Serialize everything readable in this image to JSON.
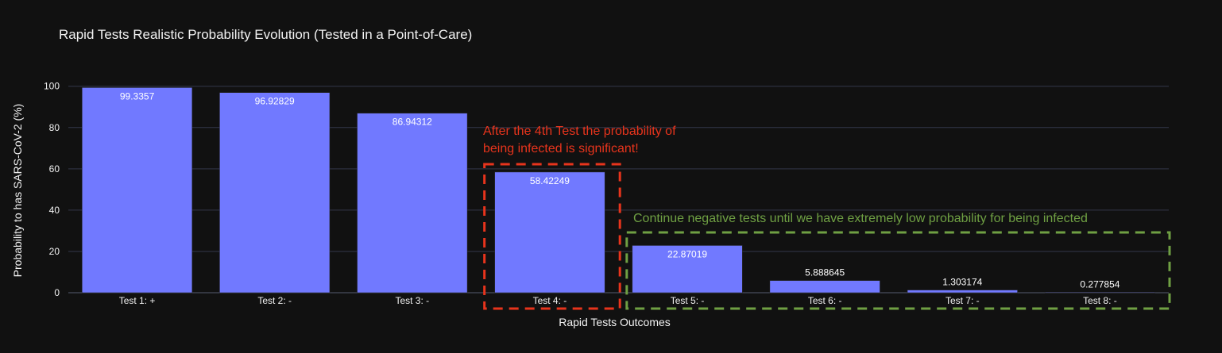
{
  "chart_data": {
    "type": "bar",
    "title": "Rapid Tests Realistic Probability Evolution (Tested in a Point-of-Care)",
    "xlabel": "Rapid Tests Outcomes",
    "ylabel": "Probability to has SARS-CoV-2 (%)",
    "categories": [
      "Test 1: +",
      "Test 2: -",
      "Test 3: -",
      "Test 4: -",
      "Test 5: -",
      "Test 6: -",
      "Test 7: -",
      "Test 8: -"
    ],
    "values": [
      99.3357,
      96.92829,
      86.94312,
      58.42249,
      22.87019,
      5.888645,
      1.303174,
      0.277854
    ],
    "value_labels": [
      "99.3357",
      "96.92829",
      "86.94312",
      "58.42249",
      "22.87019",
      "5.888645",
      "1.303174",
      "0.277854"
    ],
    "ylim": [
      0,
      104.5
    ],
    "yticks": [
      0,
      20,
      40,
      60,
      80,
      100
    ],
    "grid": true,
    "bar_color": "#7179ff",
    "background": "#111111",
    "gridline_color": "#33374a",
    "annotations": [
      {
        "lines": [
          "After the 4th Test the probability of",
          "being infected is significant!"
        ],
        "color": "#e8341c",
        "highlights": [
          "Test 4: -"
        ]
      },
      {
        "lines": [
          "Continue negative tests until we have extremely low probability for being infected"
        ],
        "color": "#6fa043",
        "highlights": [
          "Test 5: -",
          "Test 6: -",
          "Test 7: -",
          "Test 8: -"
        ]
      }
    ]
  }
}
